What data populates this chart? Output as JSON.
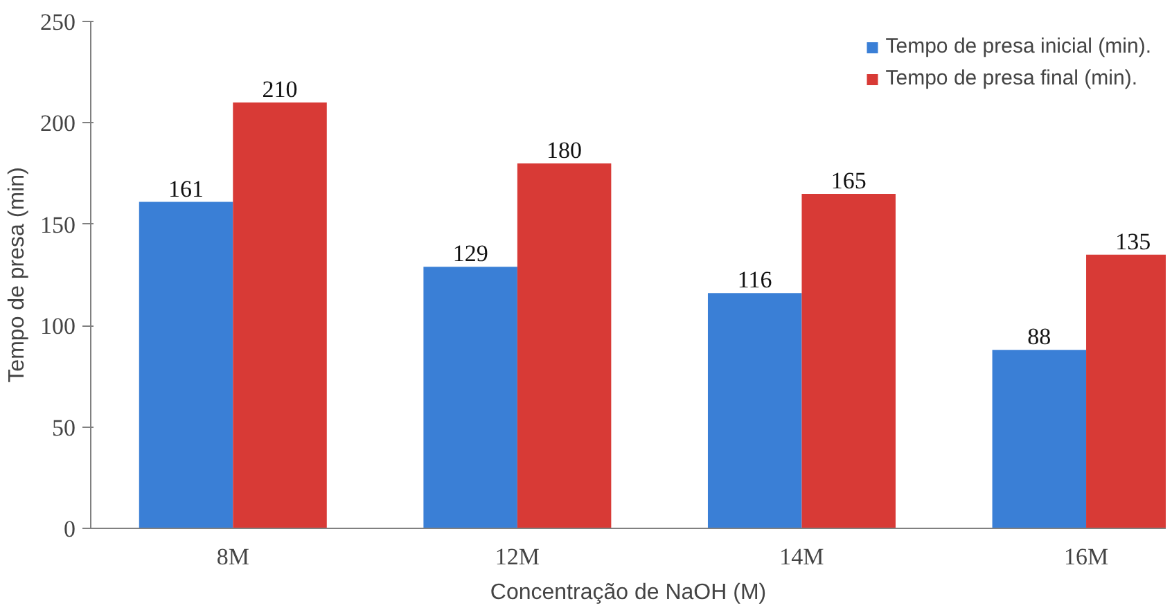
{
  "chart_data": {
    "type": "bar",
    "xlabel": "Concentração de NaOH (M)",
    "ylabel": "Tempo de presa (min)",
    "categories": [
      "8M",
      "12M",
      "14M",
      "16M"
    ],
    "series": [
      {
        "name": "Tempo de presa inicial (min).",
        "color": "#3a7fd6",
        "values": [
          161,
          129,
          116,
          88
        ]
      },
      {
        "name": "Tempo de presa final (min).",
        "color": "#d83a36",
        "values": [
          210,
          180,
          165,
          135
        ]
      }
    ],
    "ylim": [
      0,
      250
    ],
    "yticks": [
      0,
      50,
      100,
      150,
      200,
      250
    ],
    "grid": false,
    "legend": "top right",
    "data_labels": true
  }
}
